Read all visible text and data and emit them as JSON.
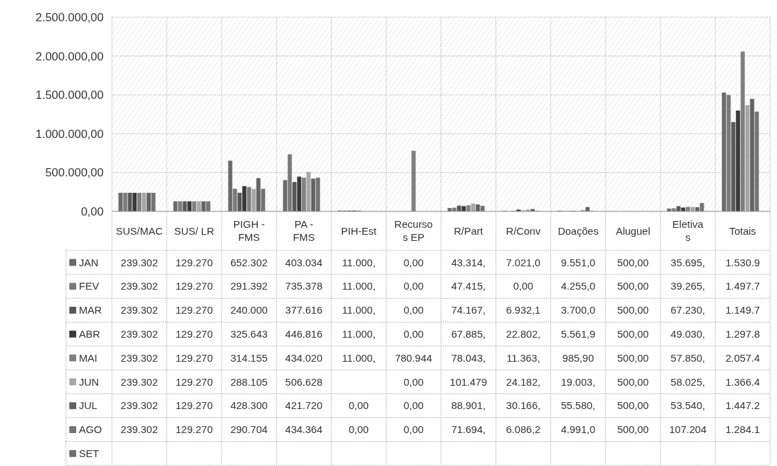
{
  "chart_data": {
    "type": "bar",
    "categories": [
      "SUS/MAC",
      "SUS/ LR",
      "PIGH - FMS",
      "PA - FMS",
      "PIH-Est",
      "Recursos EP",
      "R/Part",
      "R/Conv",
      "Doações",
      "Aluguel",
      "Eletivas",
      "Totais"
    ],
    "ylim": [
      0,
      2500000
    ],
    "yticks": [
      {
        "value": 0,
        "label": "0,00"
      },
      {
        "value": 500000,
        "label": "500.000,00"
      },
      {
        "value": 1000000,
        "label": "1.000.000,00"
      },
      {
        "value": 1500000,
        "label": "1.500.000,00"
      },
      {
        "value": 2000000,
        "label": "2.000.000,00"
      },
      {
        "value": 2500000,
        "label": "2.500.000,00"
      }
    ],
    "grid": true,
    "legend": "bottom",
    "series": [
      {
        "name": "JAN",
        "color": "#6a6a6a",
        "values": [
          239302,
          129270,
          652302,
          403034,
          11000,
          0,
          43314,
          7021.0,
          9551.0,
          500,
          35695,
          1530900
        ],
        "value_labels": [
          "239.302",
          "129.270",
          "652.302",
          "403.034",
          "11.000,",
          "0,00",
          "43.314,",
          "7.021,0",
          "9.551,0",
          "500,00",
          "35.695,",
          "1.530.9"
        ]
      },
      {
        "name": "FEV",
        "color": "#7a7a7a",
        "values": [
          239302,
          129270,
          291392,
          735378,
          11000,
          0,
          47415,
          0,
          4255.0,
          500,
          39265,
          1497700
        ],
        "value_labels": [
          "239.302",
          "129.270",
          "291.392",
          "735.378",
          "11.000,",
          "0,00",
          "47.415,",
          "0,00",
          "4.255,0",
          "500,00",
          "39.265,",
          "1.497.7"
        ]
      },
      {
        "name": "MAR",
        "color": "#595959",
        "values": [
          239302,
          129270,
          240000,
          377616,
          11000,
          0,
          74167,
          6932.1,
          3700.0,
          500,
          67230,
          1149700
        ],
        "value_labels": [
          "239.302",
          "129.270",
          "240.000",
          "377.616",
          "11.000,",
          "0,00",
          "74.167,",
          "6.932,1",
          "3.700,0",
          "500,00",
          "67.230,",
          "1.149.7"
        ]
      },
      {
        "name": "ABR",
        "color": "#3a3a3a",
        "values": [
          239302,
          129270,
          325643,
          446816,
          11000,
          0,
          67885,
          22802,
          5561.9,
          500,
          49030,
          1297800
        ],
        "value_labels": [
          "239.302",
          "129.270",
          "325.643",
          "446.816",
          "11.000,",
          "0,00",
          "67.885,",
          "22.802,",
          "5.561,9",
          "500,00",
          "49.030,",
          "1.297.8"
        ]
      },
      {
        "name": "MAI",
        "color": "#808080",
        "values": [
          239302,
          129270,
          314155,
          434020,
          11000,
          780944,
          78043,
          11363,
          985.9,
          500,
          57850,
          2057400
        ],
        "value_labels": [
          "239.302",
          "129.270",
          "314.155",
          "434.020",
          "11.000,",
          "780.944",
          "78.043,",
          "11.363,",
          "985,90",
          "500,00",
          "57.850,",
          "2.057.4"
        ]
      },
      {
        "name": "JUN",
        "color": "#a6a6a6",
        "values": [
          239302,
          129270,
          288105,
          506628,
          null,
          0,
          101479,
          24182,
          19003,
          500,
          58025,
          1366400
        ],
        "value_labels": [
          "239.302",
          "129.270",
          "288.105",
          "506.628",
          null,
          "0,00",
          "101.479",
          "24.182,",
          "19.003,",
          "500,00",
          "58.025,",
          "1.366.4"
        ]
      },
      {
        "name": "JUL",
        "color": "#626262",
        "values": [
          239302,
          129270,
          428300,
          421720,
          0,
          0,
          88901,
          30166,
          55580,
          500,
          53540,
          1447200
        ],
        "value_labels": [
          "239.302",
          "129.270",
          "428.300",
          "421.720",
          "0,00",
          "0,00",
          "88.901,",
          "30.166,",
          "55.580,",
          "500,00",
          "53.540,",
          "1.447.2"
        ]
      },
      {
        "name": "AGO",
        "color": "#747474",
        "values": [
          239302,
          129270,
          290704,
          434364,
          0,
          0,
          71694,
          6086.2,
          4991.0,
          500,
          107204,
          1284100
        ],
        "value_labels": [
          "239.302",
          "129.270",
          "290.704",
          "434.364",
          "0,00",
          "0,00",
          "71.694,",
          "6.086,2",
          "4.991,0",
          "500,00",
          "107.204",
          "1.284.1"
        ]
      },
      {
        "name": "SET",
        "color": "#6e6e6e",
        "values": [
          null,
          null,
          null,
          null,
          null,
          null,
          null,
          null,
          null,
          null,
          null,
          null
        ],
        "value_labels": [
          null,
          null,
          null,
          null,
          null,
          null,
          null,
          null,
          null,
          null,
          null,
          null
        ]
      }
    ]
  }
}
